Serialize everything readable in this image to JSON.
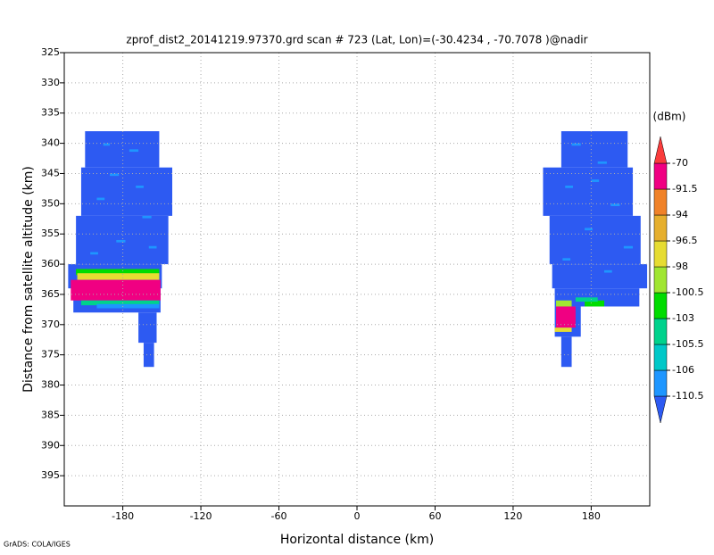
{
  "chart_data": {
    "type": "heatmap",
    "title": "zprof_dist2_20141219.97370.grd  scan # 723  (Lat, Lon)=(-30.4234 , -70.7078 )@nadir",
    "x_label": "Horizontal distance (km)",
    "y_label": "Distance from satellite altitude (km)",
    "colorbar_label": "(dBm)",
    "footer": "GrADS: COLA/IGES",
    "xlim": [
      -225,
      225
    ],
    "ylim": [
      400,
      325
    ],
    "xticks": [
      -180,
      -120,
      -60,
      0,
      60,
      120,
      180
    ],
    "yticks": [
      325,
      330,
      335,
      340,
      345,
      350,
      355,
      360,
      365,
      370,
      375,
      380,
      385,
      390,
      395
    ],
    "grid": true,
    "levels": [
      -110.5,
      -106,
      -105.5,
      -103,
      -100.5,
      -98,
      -96.5,
      -94,
      -91.5,
      -70
    ],
    "colors": [
      "#2d5af2",
      "#1e96ff",
      "#00c8c8",
      "#00d28c",
      "#00dc00",
      "#a0e632",
      "#e6dc32",
      "#e6af2d",
      "#f08228",
      "#f00082",
      "#fa3c3c"
    ],
    "cells": [
      [
        -209,
        -152,
        338,
        344,
        -112
      ],
      [
        -212,
        -142,
        344,
        352,
        -112
      ],
      [
        -216,
        -145,
        352,
        360,
        -112
      ],
      [
        -222,
        -150,
        360,
        364,
        -112
      ],
      [
        -218,
        -151,
        364,
        368,
        -112
      ],
      [
        -168,
        -154,
        368,
        373,
        -112
      ],
      [
        -164,
        -156,
        373,
        377,
        -112
      ],
      [
        -216,
        -152,
        360.8,
        361.8,
        -102
      ],
      [
        -215,
        -152,
        361.5,
        362.6,
        -97
      ],
      [
        -220,
        -151,
        362.6,
        366,
        -80
      ],
      [
        -212,
        -152,
        366,
        366.8,
        -104
      ],
      [
        -200,
        -152,
        366.6,
        367.3,
        -107
      ],
      [
        -190,
        -183,
        345,
        345.4,
        -109
      ],
      [
        -175,
        -168,
        341,
        341.4,
        -109
      ],
      [
        -200,
        -194,
        349,
        349.4,
        -109
      ],
      [
        -165,
        -158,
        352,
        352.4,
        -109
      ],
      [
        -185,
        -178,
        356,
        356.4,
        -109
      ],
      [
        -205,
        -199,
        358,
        358.4,
        -109
      ],
      [
        -170,
        -164,
        347,
        347.4,
        -109
      ],
      [
        -195,
        -190,
        340,
        340.4,
        -109
      ],
      [
        -160,
        -154,
        357,
        357.4,
        -109
      ],
      [
        157,
        208,
        338,
        344,
        -112
      ],
      [
        143,
        212,
        344,
        352,
        -112
      ],
      [
        148,
        218,
        352,
        360,
        -112
      ],
      [
        150,
        223,
        360,
        364,
        -112
      ],
      [
        152,
        217,
        364,
        367,
        -112
      ],
      [
        152,
        172,
        367,
        372,
        -112
      ],
      [
        157,
        165,
        372,
        377,
        -112
      ],
      [
        153,
        165,
        366,
        367,
        -99
      ],
      [
        175,
        190,
        366,
        367,
        -102
      ],
      [
        153,
        168,
        367,
        370.5,
        -80
      ],
      [
        152,
        165,
        370.5,
        371.2,
        -98
      ],
      [
        168,
        185,
        365.5,
        366.2,
        -104
      ],
      [
        165,
        172,
        340,
        340.4,
        -109
      ],
      [
        185,
        192,
        343,
        343.4,
        -109
      ],
      [
        160,
        166,
        347,
        347.4,
        -109
      ],
      [
        195,
        202,
        350,
        350.4,
        -109
      ],
      [
        175,
        181,
        354,
        354.4,
        -109
      ],
      [
        205,
        212,
        357,
        357.4,
        -109
      ],
      [
        158,
        164,
        359,
        359.4,
        -109
      ],
      [
        190,
        196,
        361,
        361.4,
        -109
      ],
      [
        180,
        186,
        346,
        346.4,
        -109
      ]
    ]
  }
}
